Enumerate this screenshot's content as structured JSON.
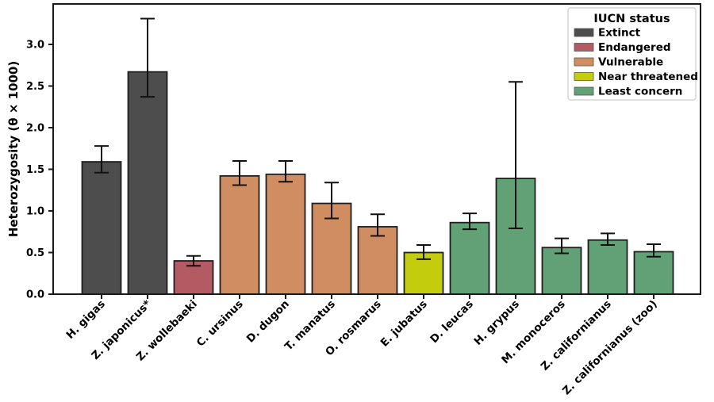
{
  "figure": {
    "background": "#ffffff"
  },
  "chart_data": {
    "type": "bar",
    "title": "",
    "xlabel": "",
    "ylabel": "Heterozygosity (θ × 1000)",
    "ylim": [
      0,
      3.45
    ],
    "yticks": [
      "0.0",
      "0.5",
      "1.0",
      "1.5",
      "2.0",
      "2.5",
      "3.0"
    ],
    "grid": false,
    "x_tick_rotation_deg": 45,
    "legend": {
      "title": "IUCN status",
      "position": "upper-right",
      "entries": [
        {
          "label": "Extinct",
          "color": "#4d4d4d"
        },
        {
          "label": "Endangered",
          "color": "#b35a62"
        },
        {
          "label": "Vulnerable",
          "color": "#cf8d61"
        },
        {
          "label": "Near threatened",
          "color": "#c3cd0e"
        },
        {
          "label": "Least concern",
          "color": "#61a175"
        }
      ]
    },
    "categories": [
      "H. gigas",
      "Z. japonicus*",
      "Z. wollebaeki",
      "C. ursinus",
      "D. dugon",
      "T. manatus",
      "O. rosmarus",
      "E. jubatus",
      "D. leucas",
      "H. grypus",
      "M. monoceros",
      "Z. californianus",
      "Z. californianus (zoo)"
    ],
    "series": [
      {
        "name": "Heterozygosity (theta x 1000)",
        "values": [
          1.59,
          2.67,
          0.4,
          1.42,
          1.44,
          1.09,
          0.81,
          0.5,
          0.86,
          1.39,
          0.56,
          0.65,
          0.51
        ],
        "error_low": [
          1.46,
          2.37,
          0.34,
          1.31,
          1.35,
          0.91,
          0.7,
          0.42,
          0.78,
          0.79,
          0.49,
          0.59,
          0.45
        ],
        "error_high": [
          1.78,
          3.31,
          0.46,
          1.6,
          1.6,
          1.34,
          0.96,
          0.59,
          0.97,
          2.55,
          0.67,
          0.73,
          0.6
        ],
        "status": [
          "Extinct",
          "Extinct",
          "Endangered",
          "Vulnerable",
          "Vulnerable",
          "Vulnerable",
          "Vulnerable",
          "Near threatened",
          "Least concern",
          "Least concern",
          "Least concern",
          "Least concern",
          "Least concern"
        ]
      }
    ]
  },
  "style": {
    "bar_edge_color": "#1f1f1f",
    "error_bar_color": "#111111",
    "axis_color": "#1a1a1a",
    "legend_border_color": "#cccccc",
    "legend_background": "#ffffff"
  }
}
